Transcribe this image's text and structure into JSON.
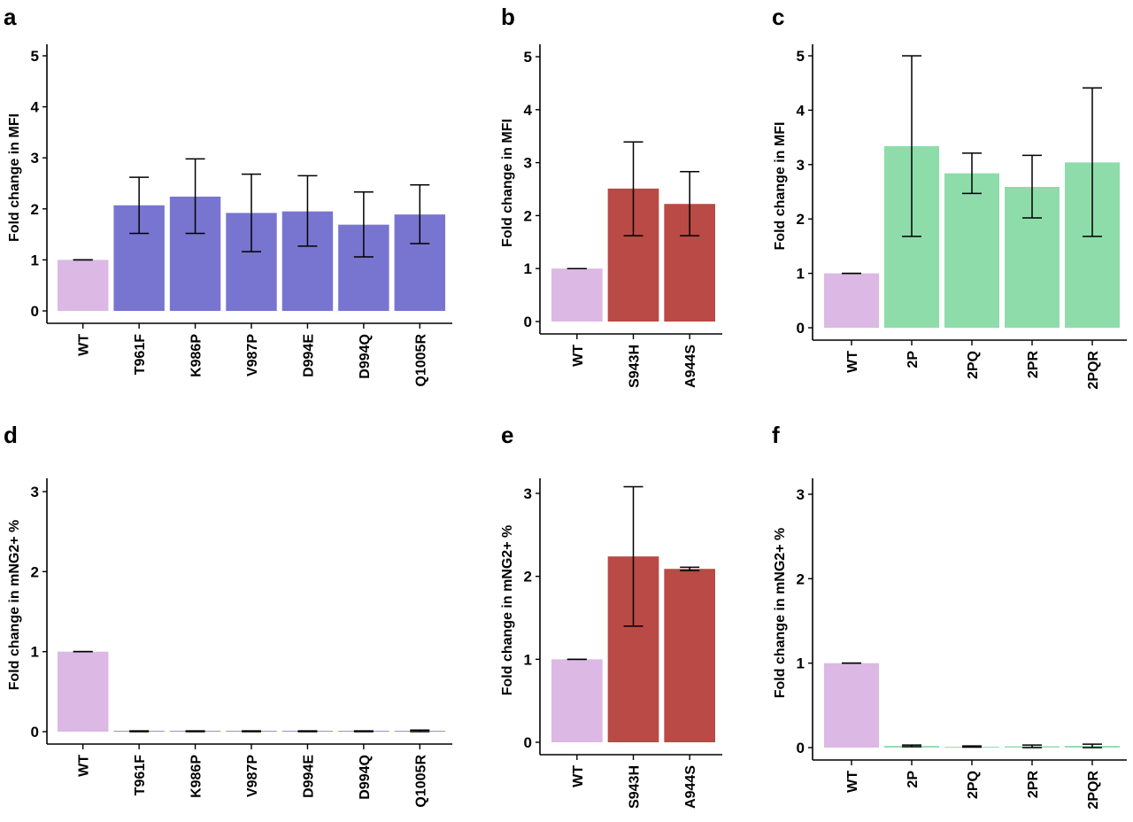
{
  "colors": {
    "wt": "#dcb8e4",
    "blue": "#7875d0",
    "red": "#b94a45",
    "green": "#8fdcab",
    "axis": "#000000"
  },
  "chart_data": [
    {
      "panel": "a",
      "type": "bar",
      "ylabel": "Fold change in MFI",
      "ylim": [
        0,
        5
      ],
      "yticks": [
        0,
        1,
        2,
        3,
        4,
        5
      ],
      "categories": [
        "WT",
        "T961F",
        "K986P",
        "V987P",
        "D994E",
        "D994Q",
        "Q1005R"
      ],
      "values": [
        1.0,
        2.07,
        2.24,
        1.92,
        1.95,
        1.69,
        1.89
      ],
      "error_low": [
        1.0,
        1.52,
        1.52,
        1.16,
        1.27,
        1.06,
        1.32
      ],
      "error_high": [
        1.0,
        2.62,
        2.98,
        2.68,
        2.65,
        2.33,
        2.47
      ],
      "bar_colors": [
        "wt",
        "blue",
        "blue",
        "blue",
        "blue",
        "blue",
        "blue"
      ]
    },
    {
      "panel": "b",
      "type": "bar",
      "ylabel": "Fold change in MFI",
      "ylim": [
        0,
        5
      ],
      "yticks": [
        0,
        1,
        2,
        3,
        4,
        5
      ],
      "categories": [
        "WT",
        "S943H",
        "A944S"
      ],
      "values": [
        1.0,
        2.51,
        2.22
      ],
      "error_low": [
        1.0,
        1.62,
        1.62
      ],
      "error_high": [
        1.0,
        3.39,
        2.83
      ],
      "bar_colors": [
        "wt",
        "red",
        "red"
      ]
    },
    {
      "panel": "c",
      "type": "bar",
      "ylabel": "Fold change in MFI",
      "ylim": [
        0,
        5
      ],
      "yticks": [
        0,
        1,
        2,
        3,
        4,
        5
      ],
      "categories": [
        "WT",
        "2P",
        "2PQ",
        "2PR",
        "2PQR"
      ],
      "values": [
        1.0,
        3.34,
        2.84,
        2.59,
        3.04
      ],
      "error_low": [
        1.0,
        1.68,
        2.47,
        2.02,
        1.68
      ],
      "error_high": [
        1.0,
        5.0,
        3.21,
        3.17,
        4.41
      ],
      "bar_colors": [
        "wt",
        "green",
        "green",
        "green",
        "green"
      ]
    },
    {
      "panel": "d",
      "type": "bar",
      "ylabel": "Fold change in mNG2+ %",
      "ylim": [
        0,
        3
      ],
      "yticks": [
        0,
        1,
        2,
        3
      ],
      "categories": [
        "WT",
        "T961F",
        "K986P",
        "V987P",
        "D994E",
        "D994Q",
        "Q1005R"
      ],
      "values": [
        1.0,
        0.005,
        0.004,
        0.004,
        0.003,
        0.005,
        0.008
      ],
      "error_low": [
        1.0,
        0.0,
        0.0,
        0.0,
        0.0,
        0.0,
        0.0
      ],
      "error_high": [
        1.0,
        0.01,
        0.01,
        0.01,
        0.01,
        0.01,
        0.02
      ],
      "bar_colors": [
        "wt",
        "blue",
        "blue",
        "blue",
        "blue",
        "blue",
        "blue"
      ]
    },
    {
      "panel": "e",
      "type": "bar",
      "ylabel": "Fold change in mNG2+ %",
      "ylim": [
        0,
        3
      ],
      "yticks": [
        0,
        1,
        2,
        3
      ],
      "categories": [
        "WT",
        "S943H",
        "A944S"
      ],
      "values": [
        1.0,
        2.24,
        2.09
      ],
      "error_low": [
        1.0,
        1.4,
        2.07
      ],
      "error_high": [
        1.0,
        3.08,
        2.11
      ],
      "bar_colors": [
        "wt",
        "red",
        "red"
      ]
    },
    {
      "panel": "f",
      "type": "bar",
      "ylabel": "Fold change in mNG2+ %",
      "ylim": [
        0,
        3
      ],
      "yticks": [
        0,
        1,
        2,
        3
      ],
      "categories": [
        "WT",
        "2P",
        "2PQ",
        "2PR",
        "2PQR"
      ],
      "values": [
        1.0,
        0.02,
        0.01,
        0.015,
        0.02
      ],
      "error_low": [
        1.0,
        0.01,
        0.005,
        0.0,
        0.0
      ],
      "error_high": [
        1.0,
        0.03,
        0.02,
        0.03,
        0.04
      ],
      "bar_colors": [
        "wt",
        "green",
        "green",
        "green",
        "green"
      ]
    }
  ]
}
